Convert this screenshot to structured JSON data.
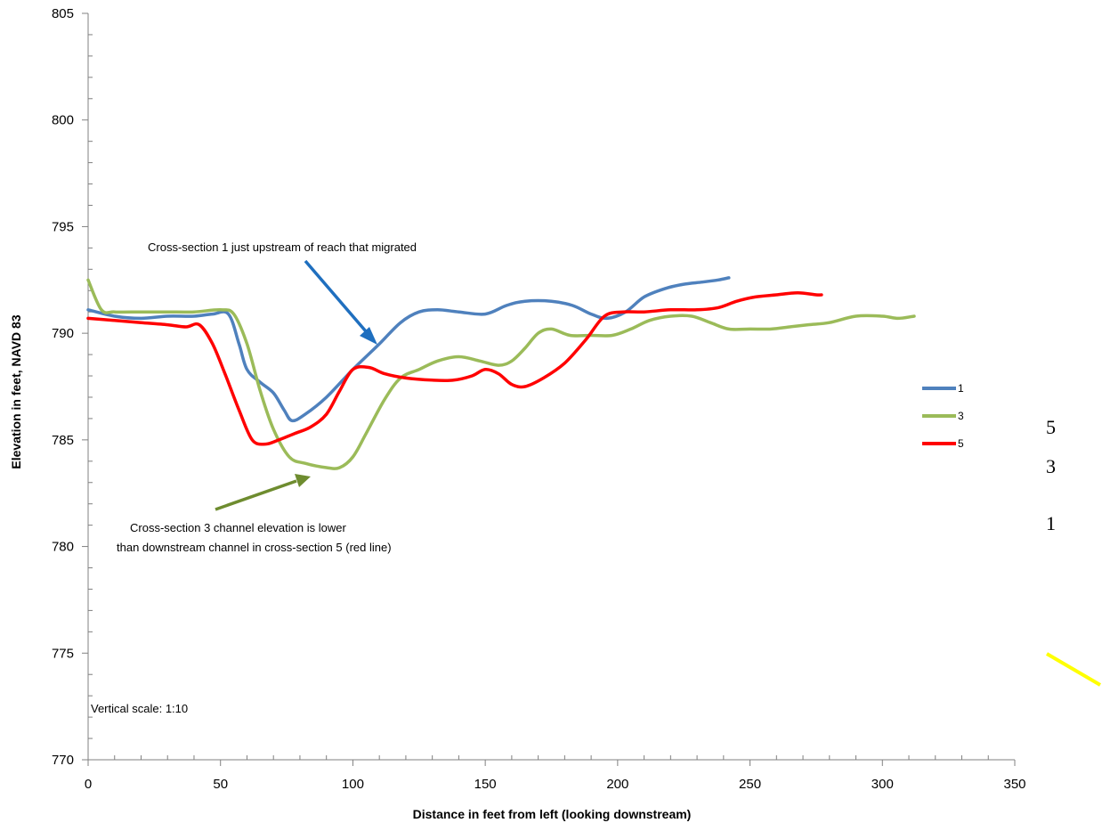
{
  "chart_data": {
    "type": "line",
    "title": "",
    "xlabel": "Distance in feet from left (looking downstream)",
    "ylabel": "Elevation in feet, NAVD 83",
    "xlim": [
      0,
      350
    ],
    "ylim": [
      770,
      805
    ],
    "x_ticks": [
      0,
      50,
      100,
      150,
      200,
      250,
      300,
      350
    ],
    "y_ticks": [
      770,
      775,
      780,
      785,
      790,
      795,
      800,
      805
    ],
    "grid": false,
    "legend_position": "right",
    "series": [
      {
        "name": "1",
        "color": "#4F81BD",
        "points": [
          [
            0,
            791.1
          ],
          [
            10,
            790.8
          ],
          [
            20,
            790.7
          ],
          [
            30,
            790.8
          ],
          [
            40,
            790.8
          ],
          [
            47,
            790.9
          ],
          [
            53,
            790.9
          ],
          [
            57,
            789.5
          ],
          [
            60,
            788.3
          ],
          [
            65,
            787.7
          ],
          [
            70,
            787.2
          ],
          [
            74,
            786.4
          ],
          [
            77,
            785.9
          ],
          [
            82,
            786.2
          ],
          [
            90,
            787.0
          ],
          [
            100,
            788.3
          ],
          [
            110,
            789.5
          ],
          [
            118,
            790.5
          ],
          [
            125,
            791.0
          ],
          [
            132,
            791.1
          ],
          [
            140,
            791.0
          ],
          [
            150,
            790.9
          ],
          [
            158,
            791.3
          ],
          [
            165,
            791.5
          ],
          [
            175,
            791.5
          ],
          [
            183,
            791.3
          ],
          [
            190,
            790.9
          ],
          [
            196,
            790.7
          ],
          [
            203,
            791.0
          ],
          [
            210,
            791.7
          ],
          [
            218,
            792.1
          ],
          [
            225,
            792.3
          ],
          [
            232,
            792.4
          ],
          [
            238,
            792.5
          ],
          [
            242,
            792.6
          ]
        ]
      },
      {
        "name": "3",
        "color": "#9BBB59",
        "points": [
          [
            0,
            792.5
          ],
          [
            5,
            791.1
          ],
          [
            10,
            791.0
          ],
          [
            20,
            791.0
          ],
          [
            30,
            791.0
          ],
          [
            40,
            791.0
          ],
          [
            50,
            791.1
          ],
          [
            55,
            790.9
          ],
          [
            60,
            789.5
          ],
          [
            65,
            787.3
          ],
          [
            70,
            785.5
          ],
          [
            76,
            784.2
          ],
          [
            82,
            783.9
          ],
          [
            90,
            783.7
          ],
          [
            95,
            783.7
          ],
          [
            100,
            784.2
          ],
          [
            105,
            785.3
          ],
          [
            112,
            786.9
          ],
          [
            118,
            787.9
          ],
          [
            125,
            788.3
          ],
          [
            132,
            788.7
          ],
          [
            140,
            788.9
          ],
          [
            148,
            788.7
          ],
          [
            155,
            788.5
          ],
          [
            160,
            788.7
          ],
          [
            165,
            789.3
          ],
          [
            170,
            790.0
          ],
          [
            175,
            790.2
          ],
          [
            182,
            789.9
          ],
          [
            190,
            789.9
          ],
          [
            198,
            789.9
          ],
          [
            205,
            790.2
          ],
          [
            212,
            790.6
          ],
          [
            220,
            790.8
          ],
          [
            228,
            790.8
          ],
          [
            235,
            790.5
          ],
          [
            242,
            790.2
          ],
          [
            250,
            790.2
          ],
          [
            258,
            790.2
          ],
          [
            265,
            790.3
          ],
          [
            272,
            790.4
          ],
          [
            280,
            790.5
          ],
          [
            290,
            790.8
          ],
          [
            300,
            790.8
          ],
          [
            306,
            790.7
          ],
          [
            312,
            790.8
          ]
        ]
      },
      {
        "name": "5",
        "color": "#FF0000",
        "points": [
          [
            0,
            790.7
          ],
          [
            10,
            790.6
          ],
          [
            20,
            790.5
          ],
          [
            30,
            790.4
          ],
          [
            37,
            790.3
          ],
          [
            42,
            790.4
          ],
          [
            47,
            789.5
          ],
          [
            52,
            788.0
          ],
          [
            57,
            786.4
          ],
          [
            62,
            785.0
          ],
          [
            67,
            784.8
          ],
          [
            72,
            785.0
          ],
          [
            78,
            785.3
          ],
          [
            84,
            785.6
          ],
          [
            90,
            786.2
          ],
          [
            95,
            787.3
          ],
          [
            100,
            788.3
          ],
          [
            106,
            788.4
          ],
          [
            112,
            788.1
          ],
          [
            120,
            787.9
          ],
          [
            130,
            787.8
          ],
          [
            138,
            787.8
          ],
          [
            145,
            788.0
          ],
          [
            150,
            788.3
          ],
          [
            155,
            788.1
          ],
          [
            160,
            787.6
          ],
          [
            165,
            787.5
          ],
          [
            172,
            787.9
          ],
          [
            180,
            788.6
          ],
          [
            188,
            789.7
          ],
          [
            195,
            790.8
          ],
          [
            202,
            791.0
          ],
          [
            210,
            791.0
          ],
          [
            220,
            791.1
          ],
          [
            230,
            791.1
          ],
          [
            238,
            791.2
          ],
          [
            245,
            791.5
          ],
          [
            252,
            791.7
          ],
          [
            260,
            791.8
          ],
          [
            268,
            791.9
          ],
          [
            275,
            791.8
          ],
          [
            277,
            791.8
          ]
        ]
      }
    ],
    "annotations": [
      {
        "text": "Cross-section 1 just upstream of reach that migrated"
      },
      {
        "text": "Cross-section 3 channel elevation is lower"
      },
      {
        "text": "than downstream channel in cross-section 5 (red line)"
      },
      {
        "text": "Vertical scale: 1:10"
      }
    ],
    "side_labels": [
      "5",
      "3",
      "1"
    ]
  }
}
